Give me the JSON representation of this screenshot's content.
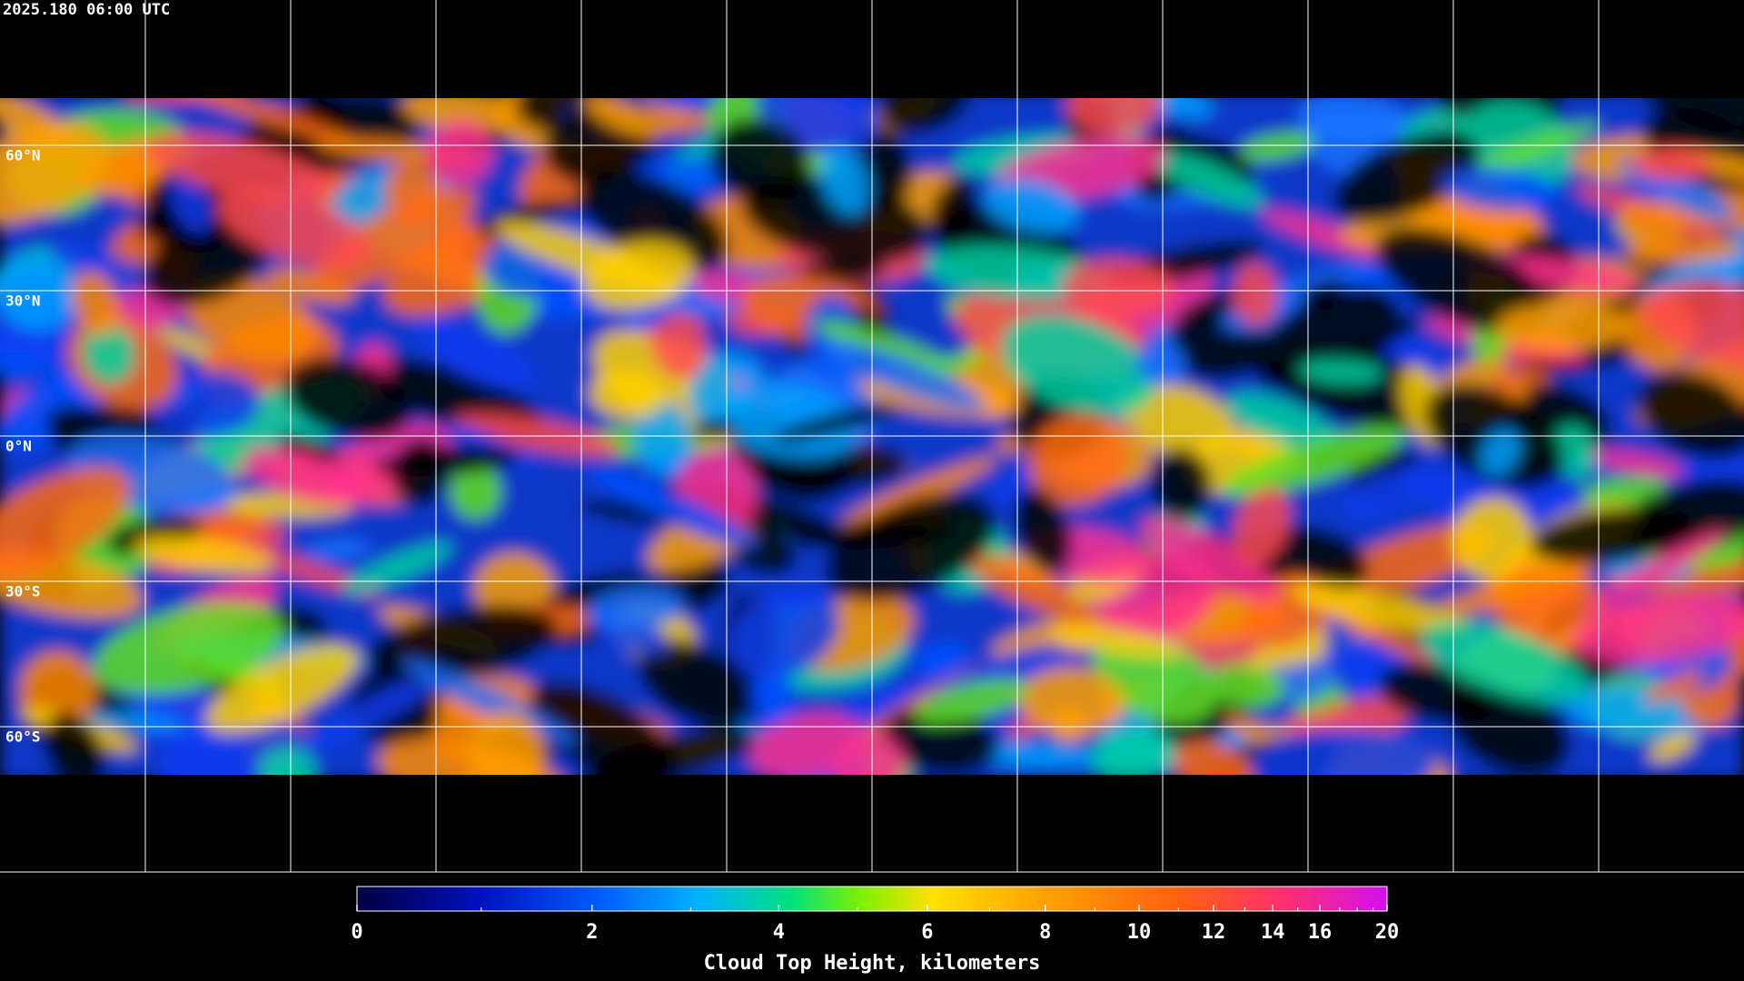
{
  "header": {
    "timestamp": "2025.180 06:00 UTC"
  },
  "map": {
    "latitude_lines": [
      {
        "value": 60,
        "label": "60°N"
      },
      {
        "value": 30,
        "label": "30°N"
      },
      {
        "value": 0,
        "label": "0°N"
      },
      {
        "value": -30,
        "label": "30°S"
      },
      {
        "value": -60,
        "label": "60°S"
      }
    ]
  },
  "colorbar": {
    "label": "Cloud Top Height, kilometers",
    "range": [
      0,
      20
    ],
    "ticks": [
      0,
      2,
      4,
      6,
      8,
      10,
      12,
      14,
      16,
      20
    ],
    "minor_ticks": [
      1,
      3,
      5,
      7,
      9,
      11,
      13,
      15,
      17,
      18,
      19
    ]
  }
}
